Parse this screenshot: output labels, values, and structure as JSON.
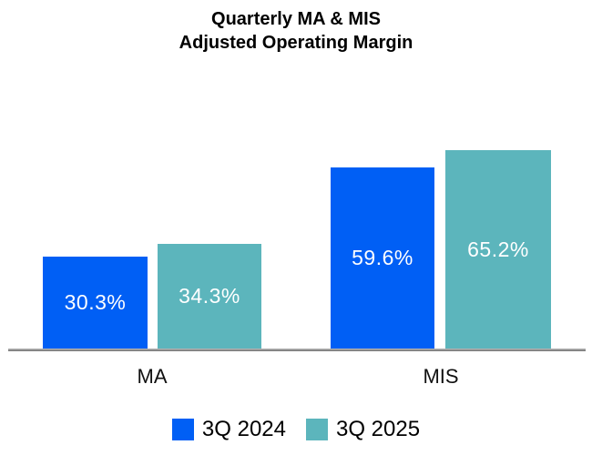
{
  "title": {
    "line1": "Quarterly MA & MIS",
    "line2": "Adjusted Operating Margin"
  },
  "chart_data": {
    "type": "bar",
    "title": "Quarterly MA & MIS Adjusted Operating Margin",
    "categories": [
      "MA",
      "MIS"
    ],
    "series": [
      {
        "name": "3Q 2024",
        "color": "#005FF5",
        "values": [
          30.3,
          59.6
        ]
      },
      {
        "name": "3Q 2025",
        "color": "#5CB5BC",
        "values": [
          34.3,
          65.2
        ]
      }
    ],
    "value_labels": [
      [
        "30.3%",
        "59.6%"
      ],
      [
        "34.3%",
        "65.2%"
      ]
    ],
    "xlabel": "",
    "ylabel": "",
    "ylim": [
      0,
      70
    ],
    "grid": false,
    "legend_position": "bottom"
  },
  "legend": {
    "items": [
      {
        "label": "3Q 2024",
        "color": "#005FF5"
      },
      {
        "label": "3Q 2025",
        "color": "#5CB5BC"
      }
    ]
  },
  "colors": {
    "background": "#FFFFFF",
    "axis_line": "#7A7A7A",
    "bar_label_text": "#FFFFFF",
    "text": "#000000"
  }
}
